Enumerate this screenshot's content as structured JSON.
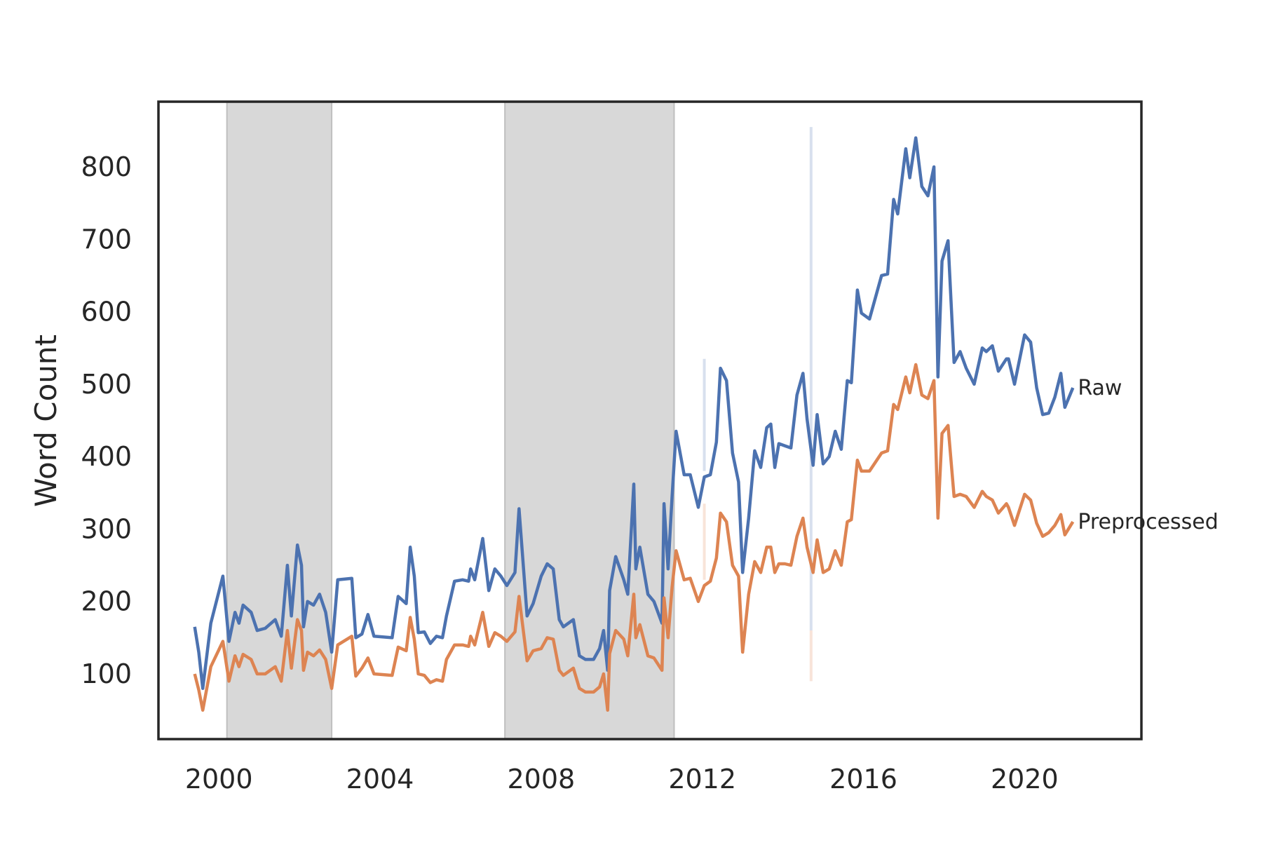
{
  "chart_data": {
    "type": "line",
    "title": "",
    "xlabel": "",
    "ylabel": "Word Count",
    "xlim": [
      1998.5,
      2022.9
    ],
    "ylim": [
      10,
      890
    ],
    "x_ticks": [
      2000,
      2004,
      2008,
      2012,
      2016,
      2020
    ],
    "y_ticks": [
      100,
      200,
      300,
      400,
      500,
      600,
      700,
      800
    ],
    "grid": false,
    "legend": "none (series labeled at line ends)",
    "shaded_periods": [
      {
        "start": 2000.2,
        "end": 2002.8
      },
      {
        "start": 2007.1,
        "end": 2011.3
      }
    ],
    "vertical_markers": [
      {
        "x": 2012.05,
        "series": "Raw",
        "from": 380,
        "to": 535
      },
      {
        "x": 2012.05,
        "series": "Preprocessed",
        "from": 230,
        "to": 335
      },
      {
        "x": 2014.7,
        "series": "Raw",
        "from": 160,
        "to": 855
      },
      {
        "x": 2014.7,
        "series": "Preprocessed",
        "from": 90,
        "to": 160
      }
    ],
    "series": [
      {
        "name": "Raw",
        "color": "#4c72b0",
        "label_position": "right end",
        "points": [
          [
            1999.4,
            165
          ],
          [
            1999.5,
            130
          ],
          [
            1999.6,
            80
          ],
          [
            1999.8,
            170
          ],
          [
            2000.1,
            235
          ],
          [
            2000.25,
            145
          ],
          [
            2000.4,
            185
          ],
          [
            2000.5,
            170
          ],
          [
            2000.6,
            195
          ],
          [
            2000.8,
            185
          ],
          [
            2000.95,
            160
          ],
          [
            2001.15,
            163
          ],
          [
            2001.4,
            175
          ],
          [
            2001.55,
            152
          ],
          [
            2001.7,
            250
          ],
          [
            2001.8,
            180
          ],
          [
            2001.95,
            278
          ],
          [
            2002.05,
            250
          ],
          [
            2002.1,
            165
          ],
          [
            2002.2,
            200
          ],
          [
            2002.35,
            195
          ],
          [
            2002.5,
            210
          ],
          [
            2002.65,
            185
          ],
          [
            2002.8,
            130
          ],
          [
            2002.95,
            230
          ],
          [
            2003.3,
            232
          ],
          [
            2003.4,
            150
          ],
          [
            2003.55,
            155
          ],
          [
            2003.7,
            182
          ],
          [
            2003.85,
            152
          ],
          [
            2004.3,
            150
          ],
          [
            2004.45,
            207
          ],
          [
            2004.65,
            197
          ],
          [
            2004.75,
            275
          ],
          [
            2004.85,
            235
          ],
          [
            2004.95,
            157
          ],
          [
            2005.1,
            158
          ],
          [
            2005.25,
            142
          ],
          [
            2005.4,
            152
          ],
          [
            2005.55,
            150
          ],
          [
            2005.65,
            180
          ],
          [
            2005.85,
            228
          ],
          [
            2006.05,
            230
          ],
          [
            2006.2,
            228
          ],
          [
            2006.25,
            245
          ],
          [
            2006.35,
            230
          ],
          [
            2006.55,
            287
          ],
          [
            2006.7,
            215
          ],
          [
            2006.85,
            245
          ],
          [
            2007.0,
            235
          ],
          [
            2007.15,
            222
          ],
          [
            2007.35,
            240
          ],
          [
            2007.45,
            328
          ],
          [
            2007.65,
            180
          ],
          [
            2007.8,
            197
          ],
          [
            2008.0,
            235
          ],
          [
            2008.15,
            252
          ],
          [
            2008.3,
            245
          ],
          [
            2008.45,
            175
          ],
          [
            2008.55,
            165
          ],
          [
            2008.8,
            175
          ],
          [
            2008.95,
            125
          ],
          [
            2009.1,
            120
          ],
          [
            2009.3,
            120
          ],
          [
            2009.45,
            135
          ],
          [
            2009.55,
            160
          ],
          [
            2009.65,
            105
          ],
          [
            2009.7,
            215
          ],
          [
            2009.85,
            262
          ],
          [
            2010.05,
            230
          ],
          [
            2010.15,
            210
          ],
          [
            2010.3,
            362
          ],
          [
            2010.35,
            245
          ],
          [
            2010.45,
            275
          ],
          [
            2010.65,
            210
          ],
          [
            2010.8,
            200
          ],
          [
            2011.0,
            170
          ],
          [
            2011.05,
            335
          ],
          [
            2011.15,
            245
          ],
          [
            2011.25,
            345
          ],
          [
            2011.35,
            435
          ],
          [
            2011.55,
            375
          ],
          [
            2011.7,
            375
          ],
          [
            2011.9,
            330
          ],
          [
            2012.05,
            372
          ],
          [
            2012.2,
            375
          ],
          [
            2012.35,
            420
          ],
          [
            2012.45,
            522
          ],
          [
            2012.6,
            505
          ],
          [
            2012.75,
            405
          ],
          [
            2012.9,
            365
          ],
          [
            2013.0,
            240
          ],
          [
            2013.15,
            315
          ],
          [
            2013.3,
            408
          ],
          [
            2013.45,
            385
          ],
          [
            2013.6,
            440
          ],
          [
            2013.7,
            445
          ],
          [
            2013.8,
            385
          ],
          [
            2013.9,
            418
          ],
          [
            2014.05,
            415
          ],
          [
            2014.2,
            412
          ],
          [
            2014.35,
            485
          ],
          [
            2014.5,
            515
          ],
          [
            2014.6,
            452
          ],
          [
            2014.75,
            388
          ],
          [
            2014.85,
            458
          ],
          [
            2015.0,
            390
          ],
          [
            2015.15,
            400
          ],
          [
            2015.3,
            435
          ],
          [
            2015.45,
            410
          ],
          [
            2015.6,
            505
          ],
          [
            2015.7,
            502
          ],
          [
            2015.85,
            630
          ],
          [
            2015.95,
            598
          ],
          [
            2016.15,
            590
          ],
          [
            2016.45,
            650
          ],
          [
            2016.6,
            652
          ],
          [
            2016.75,
            755
          ],
          [
            2016.85,
            735
          ],
          [
            2017.05,
            825
          ],
          [
            2017.15,
            785
          ],
          [
            2017.3,
            840
          ],
          [
            2017.45,
            773
          ],
          [
            2017.6,
            760
          ],
          [
            2017.75,
            800
          ],
          [
            2017.85,
            510
          ],
          [
            2017.95,
            670
          ],
          [
            2018.1,
            698
          ],
          [
            2018.25,
            530
          ],
          [
            2018.4,
            545
          ],
          [
            2018.55,
            522
          ],
          [
            2018.75,
            500
          ],
          [
            2018.95,
            550
          ],
          [
            2019.05,
            545
          ],
          [
            2019.2,
            553
          ],
          [
            2019.35,
            518
          ],
          [
            2019.55,
            535
          ],
          [
            2019.6,
            535
          ],
          [
            2019.75,
            500
          ],
          [
            2020.0,
            568
          ],
          [
            2020.15,
            558
          ],
          [
            2020.3,
            495
          ],
          [
            2020.45,
            458
          ],
          [
            2020.6,
            460
          ],
          [
            2020.75,
            482
          ],
          [
            2020.9,
            515
          ],
          [
            2021.0,
            468
          ],
          [
            2021.2,
            495
          ]
        ]
      },
      {
        "name": "Preprocessed",
        "color": "#dd8452",
        "label_position": "right end",
        "points": [
          [
            1999.4,
            100
          ],
          [
            1999.5,
            78
          ],
          [
            1999.6,
            50
          ],
          [
            1999.8,
            110
          ],
          [
            2000.1,
            145
          ],
          [
            2000.25,
            90
          ],
          [
            2000.4,
            125
          ],
          [
            2000.5,
            110
          ],
          [
            2000.6,
            127
          ],
          [
            2000.8,
            120
          ],
          [
            2000.95,
            100
          ],
          [
            2001.15,
            100
          ],
          [
            2001.4,
            110
          ],
          [
            2001.55,
            90
          ],
          [
            2001.7,
            160
          ],
          [
            2001.8,
            108
          ],
          [
            2001.95,
            175
          ],
          [
            2002.05,
            160
          ],
          [
            2002.1,
            105
          ],
          [
            2002.2,
            130
          ],
          [
            2002.35,
            125
          ],
          [
            2002.5,
            133
          ],
          [
            2002.65,
            120
          ],
          [
            2002.8,
            80
          ],
          [
            2002.95,
            140
          ],
          [
            2003.3,
            152
          ],
          [
            2003.4,
            97
          ],
          [
            2003.55,
            108
          ],
          [
            2003.7,
            122
          ],
          [
            2003.85,
            100
          ],
          [
            2004.3,
            98
          ],
          [
            2004.45,
            137
          ],
          [
            2004.65,
            132
          ],
          [
            2004.75,
            178
          ],
          [
            2004.85,
            148
          ],
          [
            2004.95,
            100
          ],
          [
            2005.1,
            98
          ],
          [
            2005.25,
            88
          ],
          [
            2005.4,
            92
          ],
          [
            2005.55,
            90
          ],
          [
            2005.65,
            120
          ],
          [
            2005.85,
            140
          ],
          [
            2006.05,
            140
          ],
          [
            2006.2,
            138
          ],
          [
            2006.25,
            152
          ],
          [
            2006.35,
            140
          ],
          [
            2006.55,
            185
          ],
          [
            2006.7,
            138
          ],
          [
            2006.85,
            157
          ],
          [
            2007.0,
            152
          ],
          [
            2007.15,
            145
          ],
          [
            2007.35,
            158
          ],
          [
            2007.45,
            207
          ],
          [
            2007.65,
            118
          ],
          [
            2007.8,
            132
          ],
          [
            2008.0,
            135
          ],
          [
            2008.15,
            150
          ],
          [
            2008.3,
            148
          ],
          [
            2008.45,
            105
          ],
          [
            2008.55,
            98
          ],
          [
            2008.8,
            108
          ],
          [
            2008.95,
            80
          ],
          [
            2009.1,
            75
          ],
          [
            2009.3,
            75
          ],
          [
            2009.45,
            82
          ],
          [
            2009.55,
            100
          ],
          [
            2009.65,
            50
          ],
          [
            2009.7,
            128
          ],
          [
            2009.85,
            160
          ],
          [
            2010.05,
            148
          ],
          [
            2010.15,
            125
          ],
          [
            2010.3,
            210
          ],
          [
            2010.35,
            150
          ],
          [
            2010.45,
            168
          ],
          [
            2010.65,
            125
          ],
          [
            2010.8,
            122
          ],
          [
            2011.0,
            105
          ],
          [
            2011.05,
            205
          ],
          [
            2011.15,
            150
          ],
          [
            2011.25,
            220
          ],
          [
            2011.35,
            270
          ],
          [
            2011.55,
            230
          ],
          [
            2011.7,
            232
          ],
          [
            2011.9,
            200
          ],
          [
            2012.05,
            222
          ],
          [
            2012.2,
            228
          ],
          [
            2012.35,
            260
          ],
          [
            2012.45,
            322
          ],
          [
            2012.6,
            310
          ],
          [
            2012.75,
            250
          ],
          [
            2012.9,
            235
          ],
          [
            2013.0,
            130
          ],
          [
            2013.15,
            210
          ],
          [
            2013.3,
            255
          ],
          [
            2013.45,
            240
          ],
          [
            2013.6,
            275
          ],
          [
            2013.7,
            275
          ],
          [
            2013.8,
            240
          ],
          [
            2013.9,
            252
          ],
          [
            2014.05,
            252
          ],
          [
            2014.2,
            250
          ],
          [
            2014.35,
            290
          ],
          [
            2014.5,
            315
          ],
          [
            2014.6,
            275
          ],
          [
            2014.75,
            240
          ],
          [
            2014.85,
            285
          ],
          [
            2015.0,
            240
          ],
          [
            2015.15,
            245
          ],
          [
            2015.3,
            270
          ],
          [
            2015.45,
            250
          ],
          [
            2015.6,
            310
          ],
          [
            2015.7,
            313
          ],
          [
            2015.85,
            395
          ],
          [
            2015.95,
            380
          ],
          [
            2016.15,
            380
          ],
          [
            2016.45,
            405
          ],
          [
            2016.6,
            408
          ],
          [
            2016.75,
            472
          ],
          [
            2016.85,
            465
          ],
          [
            2017.05,
            510
          ],
          [
            2017.15,
            488
          ],
          [
            2017.3,
            527
          ],
          [
            2017.45,
            485
          ],
          [
            2017.6,
            480
          ],
          [
            2017.75,
            505
          ],
          [
            2017.85,
            315
          ],
          [
            2017.95,
            432
          ],
          [
            2018.1,
            443
          ],
          [
            2018.25,
            345
          ],
          [
            2018.4,
            348
          ],
          [
            2018.55,
            345
          ],
          [
            2018.75,
            330
          ],
          [
            2018.95,
            352
          ],
          [
            2019.05,
            345
          ],
          [
            2019.2,
            340
          ],
          [
            2019.35,
            322
          ],
          [
            2019.55,
            335
          ],
          [
            2019.6,
            330
          ],
          [
            2019.75,
            305
          ],
          [
            2020.0,
            348
          ],
          [
            2020.15,
            340
          ],
          [
            2020.3,
            308
          ],
          [
            2020.45,
            290
          ],
          [
            2020.6,
            295
          ],
          [
            2020.75,
            305
          ],
          [
            2020.9,
            320
          ],
          [
            2021.0,
            292
          ],
          [
            2021.2,
            310
          ]
        ]
      }
    ]
  }
}
